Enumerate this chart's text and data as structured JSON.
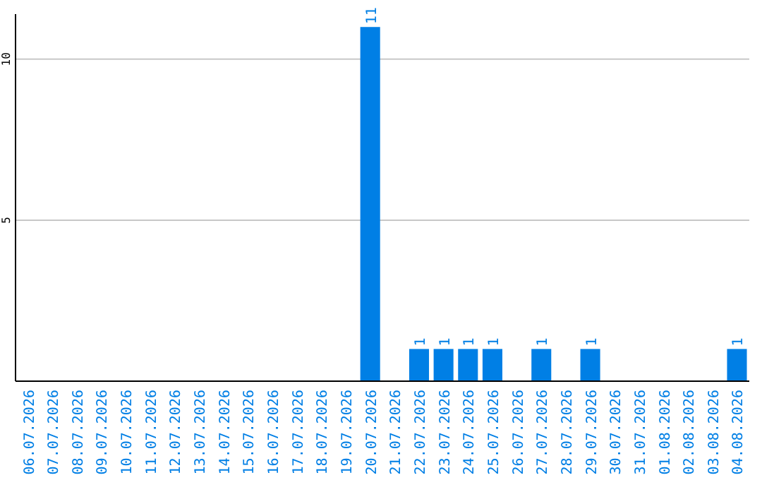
{
  "chart_data": {
    "type": "bar",
    "categories": [
      "06.07.2026",
      "07.07.2026",
      "08.07.2026",
      "09.07.2026",
      "10.07.2026",
      "11.07.2026",
      "12.07.2026",
      "13.07.2026",
      "14.07.2026",
      "15.07.2026",
      "16.07.2026",
      "17.07.2026",
      "18.07.2026",
      "19.07.2026",
      "20.07.2026",
      "21.07.2026",
      "22.07.2026",
      "23.07.2026",
      "24.07.2026",
      "25.07.2026",
      "26.07.2026",
      "27.07.2026",
      "28.07.2026",
      "29.07.2026",
      "30.07.2026",
      "31.07.2026",
      "01.08.2026",
      "02.08.2026",
      "03.08.2026",
      "04.08.2026"
    ],
    "values": [
      0,
      0,
      0,
      0,
      0,
      0,
      0,
      0,
      0,
      0,
      0,
      0,
      0,
      0,
      11,
      0,
      1,
      1,
      1,
      1,
      0,
      1,
      0,
      1,
      0,
      0,
      0,
      0,
      0,
      1
    ],
    "value_labels": [
      null,
      null,
      null,
      null,
      null,
      null,
      null,
      null,
      null,
      null,
      null,
      null,
      null,
      null,
      "11",
      null,
      "1",
      "1",
      "1",
      "1",
      null,
      "1",
      null,
      "1",
      null,
      null,
      null,
      null,
      null,
      "1"
    ],
    "color": "#007fe5",
    "ylim": [
      0,
      11.4
    ],
    "yticks": [
      5,
      10
    ],
    "grid": "y"
  }
}
